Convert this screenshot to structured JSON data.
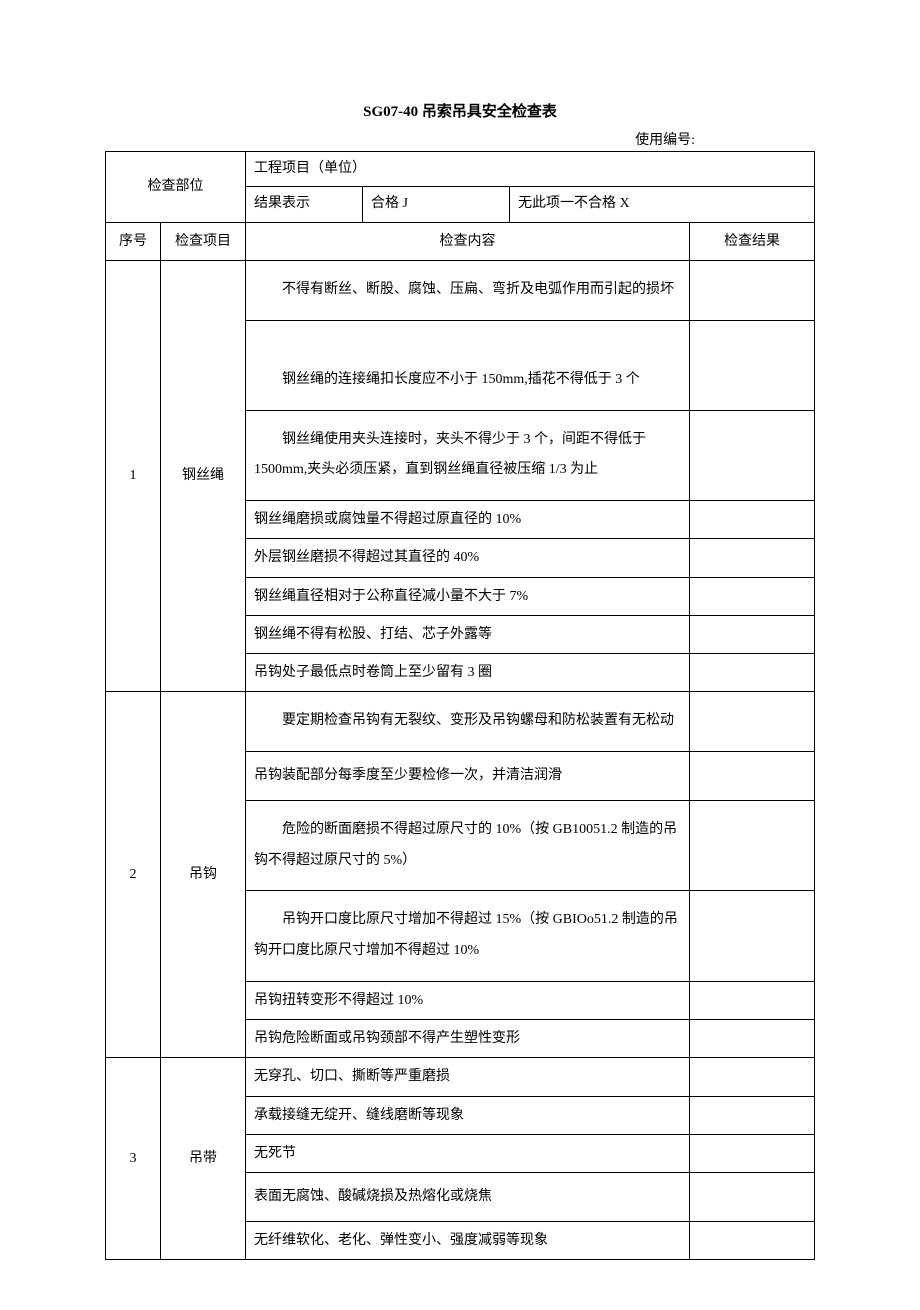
{
  "title_prefix": "SG07-40",
  "title_main": "吊索吊具安全检查表",
  "info": {
    "project_label": "工程项目（单位）",
    "usage_no_label": "使用编号:",
    "check_part_label": "检查部位",
    "no_border_gap": "",
    "result_indicator_label": "结果表示",
    "pass_label": "合格 J",
    "none_fail_label": "无此项一不合格 X"
  },
  "headers": {
    "seq": "序号",
    "item": "检查项目",
    "content": "检查内容",
    "result": "检查结果"
  },
  "sections": [
    {
      "seq": "1",
      "item": "钢丝绳",
      "rows": [
        {
          "content": "不得有断丝、断股、腐蚀、压扁、弯折及电弧作用而引起的损坏",
          "indent": true,
          "tall": true
        },
        {
          "content": "钢丝绳的连接绳扣长度应不小于 150mm,插花不得低于 3 个",
          "indent": true,
          "extratall": true
        },
        {
          "content": "钢丝绳使用夹头连接时，夹头不得少于 3 个，间距不得低于1500mm,夹头必须压紧，直到钢丝绳直径被压缩 1/3 为止",
          "indent": true,
          "tall": true
        },
        {
          "content": "钢丝绳磨损或腐蚀量不得超过原直径的 10%",
          "indent": false
        },
        {
          "content": "外层钢丝磨损不得超过其直径的 40%",
          "indent": false
        },
        {
          "content": "钢丝绳直径相对于公称直径减小量不大于 7%",
          "indent": false
        },
        {
          "content": "钢丝绳不得有松股、打结、芯子外露等",
          "indent": false
        },
        {
          "content": "吊钩处子最低点时卷筒上至少留有 3 圈",
          "indent": false
        }
      ]
    },
    {
      "seq": "2",
      "item": "吊钩",
      "rows": [
        {
          "content": "要定期检查吊钩有无裂纹、变形及吊钩螺母和防松装置有无松动",
          "indent": true,
          "tall": true
        },
        {
          "content": "吊钩装配部分每季度至少要检修一次，并清洁润滑",
          "indent": false,
          "med": true
        },
        {
          "content": "危险的断面磨损不得超过原尺寸的 10%（按 GB10051.2 制造的吊钩不得超过原尺寸的 5%）",
          "indent": true,
          "tall": true
        },
        {
          "content": "吊钩开口度比原尺寸增加不得超过 15%（按 GBIOo51.2 制造的吊钩开口度比原尺寸增加不得超过 10%",
          "indent": true,
          "tall": true
        },
        {
          "content": "吊钩扭转变形不得超过 10%",
          "indent": false
        },
        {
          "content": "吊钩危险断面或吊钩颈部不得产生塑性变形",
          "indent": false
        }
      ]
    },
    {
      "seq": "3",
      "item": "吊带",
      "rows": [
        {
          "content": "无穿孔、切口、撕断等严重磨损",
          "indent": false
        },
        {
          "content": "承载接缝无绽开、缝线磨断等现象",
          "indent": false
        },
        {
          "content": "无死节",
          "indent": false
        },
        {
          "content": "表面无腐蚀、酸碱烧损及热熔化或烧焦",
          "indent": false,
          "med": true
        },
        {
          "content": "无纤维软化、老化、弹性变小、强度减弱等现象",
          "indent": false
        }
      ]
    }
  ]
}
